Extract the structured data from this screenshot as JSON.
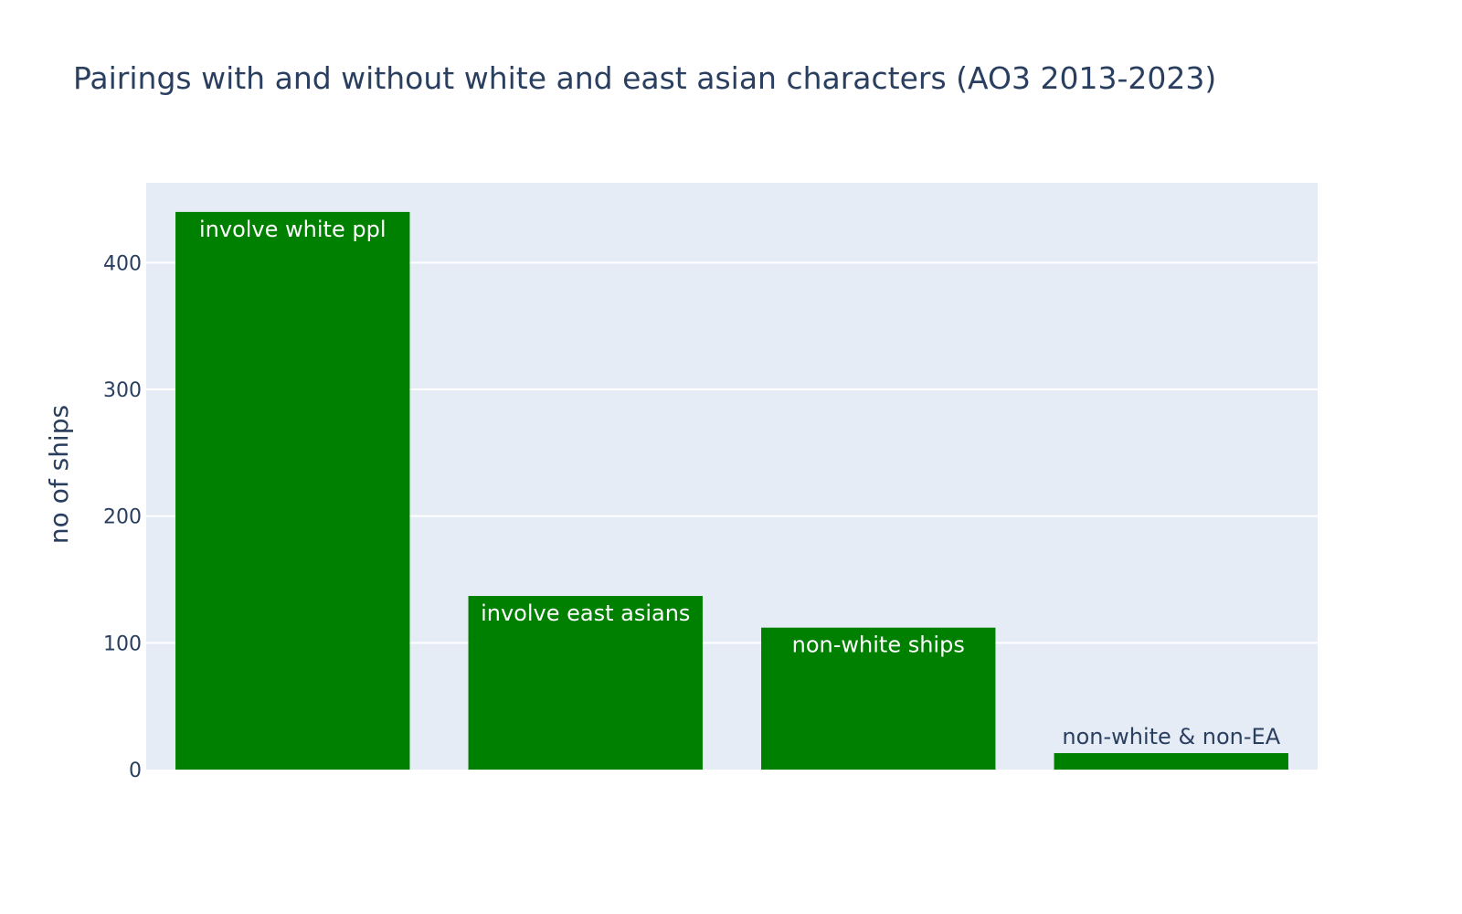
{
  "chart_data": {
    "type": "bar",
    "title": "Pairings with and without white and east asian characters (AO3 2013-2023)",
    "xlabel": "",
    "ylabel": "no of ships",
    "categories": [
      "involve white ppl",
      "involve east asians",
      "non-white ships",
      "non-white & non-EA"
    ],
    "values": [
      440,
      137,
      112,
      13
    ],
    "bar_labels": [
      "involve white ppl",
      "involve east asians",
      "non-white ships",
      "non-white & non-EA"
    ],
    "ylim": [
      0,
      463
    ],
    "yticks": [
      0,
      100,
      200,
      300,
      400
    ],
    "grid": true,
    "legend": "none",
    "colors": {
      "bar": "#008000",
      "plot_bg": "#e5ecf6",
      "grid": "#ffffff",
      "text": "#2a3f5f",
      "label_inside": "#ffffff"
    }
  }
}
